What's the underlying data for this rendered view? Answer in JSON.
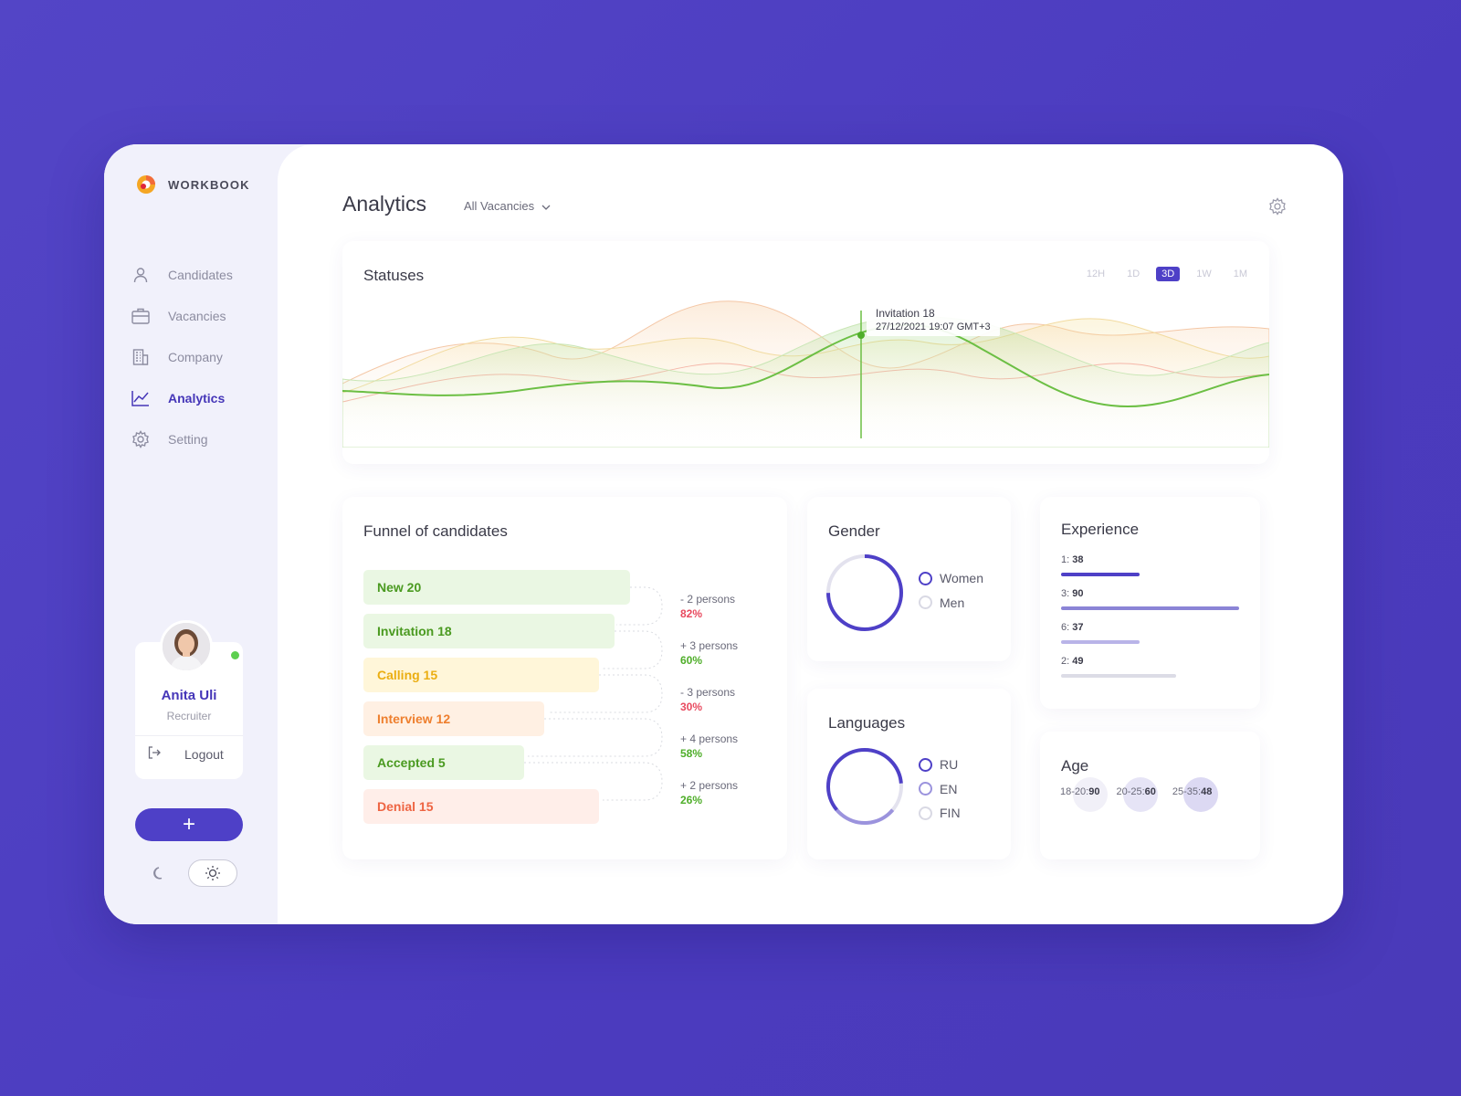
{
  "brand": {
    "name": "WORKBOOK"
  },
  "sidebar": {
    "items": [
      {
        "label": "Candidates",
        "icon": "user-icon"
      },
      {
        "label": "Vacancies",
        "icon": "briefcase-icon"
      },
      {
        "label": "Company",
        "icon": "building-icon"
      },
      {
        "label": "Analytics",
        "icon": "chart-icon",
        "active": true
      },
      {
        "label": "Setting",
        "icon": "gear-icon"
      }
    ],
    "profile": {
      "name": "Anita Uli",
      "role": "Recruiter",
      "status": "online"
    },
    "logout_label": "Logout",
    "add_label": "+"
  },
  "header": {
    "title": "Analytics",
    "vacancy_filter": "All Vacancies"
  },
  "statuses": {
    "title": "Statuses",
    "ranges": [
      "12H",
      "1D",
      "3D",
      "1W",
      "1M"
    ],
    "active_range": "3D",
    "tooltip": {
      "label": "Invitation 18",
      "timestamp": "27/12/2021 19:07 GMT+3"
    },
    "colors": {
      "invitation": "#5dbb3a",
      "calling": "#f2c66b",
      "interview": "#f2a67a",
      "denial": "#f29a8a"
    }
  },
  "funnel": {
    "title": "Funnel of candidates",
    "stages": [
      {
        "label": "New 20",
        "value": 20,
        "color": "#5aa82c",
        "bg": "#eaf7e3"
      },
      {
        "label": "Invitation 18",
        "value": 18,
        "color": "#5aa82c",
        "bg": "#eaf7e3"
      },
      {
        "label": "Calling 15",
        "value": 15,
        "color": "#efb51f",
        "bg": "#fff6d9"
      },
      {
        "label": "Interview 12",
        "value": 12,
        "color": "#f08a3c",
        "bg": "#fff0e3"
      },
      {
        "label": "Accepted 5",
        "value": 5,
        "color": "#5aa82c",
        "bg": "#eaf7e3"
      },
      {
        "label": "Denial 15",
        "value": 15,
        "color": "#ef6a4a",
        "bg": "#ffeee9"
      }
    ],
    "changes": [
      {
        "persons": "- 2 persons",
        "pct": "82%",
        "color": "#e84a5f"
      },
      {
        "persons": "+ 3 persons",
        "pct": "60%",
        "color": "#4fae2a"
      },
      {
        "persons": "- 3 persons",
        "pct": "30%",
        "color": "#e84a5f"
      },
      {
        "persons": "+ 4 persons",
        "pct": "58%",
        "color": "#4fae2a"
      },
      {
        "persons": "+ 2 persons",
        "pct": "26%",
        "color": "#4fae2a"
      }
    ]
  },
  "gender": {
    "title": "Gender",
    "items": [
      {
        "label": "Women",
        "color": "#4e40c7"
      },
      {
        "label": "Men",
        "color": "#d9d9e4"
      }
    ]
  },
  "languages": {
    "title": "Languages",
    "items": [
      {
        "label": "RU",
        "color": "#4e40c7"
      },
      {
        "label": "EN",
        "color": "#9b93dd"
      },
      {
        "label": "FIN",
        "color": "#d9d9e4"
      }
    ]
  },
  "experience": {
    "title": "Experience",
    "items": [
      {
        "key": "1:",
        "value": "38",
        "fraction": 0.44,
        "color": "#4e40c7"
      },
      {
        "key": "3:",
        "value": "90",
        "fraction": 1.0,
        "color": "#8b84d6"
      },
      {
        "key": "6:",
        "value": "37",
        "fraction": 0.44,
        "color": "#b9b4e8"
      },
      {
        "key": "2:",
        "value": "49",
        "fraction": 0.65,
        "color": "#dcdce6"
      }
    ]
  },
  "age": {
    "title": "Age",
    "items": [
      {
        "key": "18-20:",
        "value": "90",
        "color": "#f1f0f8"
      },
      {
        "key": "20-25:",
        "value": "60",
        "color": "#e6e4f6"
      },
      {
        "key": "25-35:",
        "value": "48",
        "color": "#dcd9f3"
      }
    ]
  }
}
